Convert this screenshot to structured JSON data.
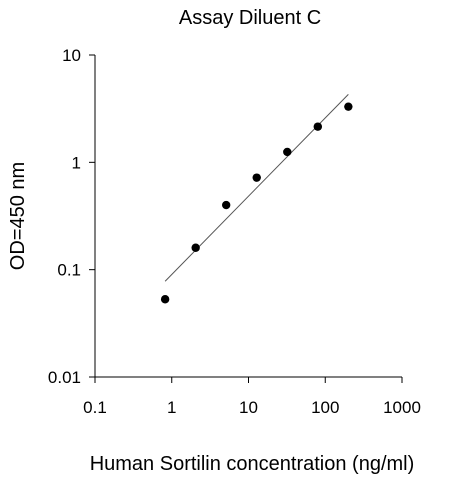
{
  "chart_data": {
    "type": "scatter",
    "title": "Assay Diluent C",
    "xlabel": "Human Sortilin concentration (ng/ml)",
    "ylabel": "OD=450 nm",
    "x_scale": "log",
    "y_scale": "log",
    "xlim": [
      0.1,
      1000
    ],
    "ylim": [
      0.01,
      10
    ],
    "x_ticks": [
      {
        "value": 0.1,
        "label": "0.1"
      },
      {
        "value": 1,
        "label": "1"
      },
      {
        "value": 10,
        "label": "10"
      },
      {
        "value": 100,
        "label": "100"
      },
      {
        "value": 1000,
        "label": "1000"
      }
    ],
    "y_ticks": [
      {
        "value": 0.01,
        "label": "0.01"
      },
      {
        "value": 0.1,
        "label": "0.1"
      },
      {
        "value": 1,
        "label": "1"
      },
      {
        "value": 10,
        "label": "10"
      }
    ],
    "grid": false,
    "legend": "none",
    "points": [
      {
        "x": 0.82,
        "y": 0.053
      },
      {
        "x": 2.05,
        "y": 0.16
      },
      {
        "x": 5.12,
        "y": 0.4
      },
      {
        "x": 12.8,
        "y": 0.72
      },
      {
        "x": 32,
        "y": 1.25
      },
      {
        "x": 80,
        "y": 2.15
      },
      {
        "x": 200,
        "y": 3.3
      }
    ],
    "fit_line": {
      "x": [
        0.82,
        200
      ],
      "y": [
        0.078,
        4.3
      ]
    },
    "colors": {
      "points": "#000000",
      "fit_line": "#555555",
      "axes": "#000000"
    }
  }
}
